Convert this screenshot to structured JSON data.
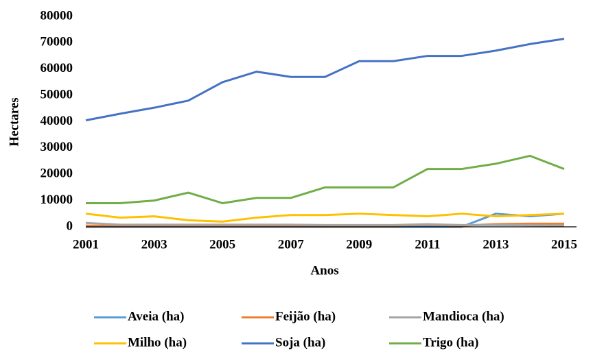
{
  "chart_data": {
    "type": "line",
    "x_label": "Anos",
    "y_label": "Hectares",
    "x": [
      2001,
      2002,
      2003,
      2004,
      2005,
      2006,
      2007,
      2008,
      2009,
      2010,
      2011,
      2012,
      2013,
      2014,
      2015
    ],
    "xlim": [
      2001,
      2015
    ],
    "xticks": [
      2001,
      2003,
      2005,
      2007,
      2009,
      2011,
      2013,
      2015
    ],
    "ylim": [
      0,
      80000
    ],
    "yticks": [
      0,
      10000,
      20000,
      30000,
      40000,
      50000,
      60000,
      70000,
      80000
    ],
    "legend": "bottom",
    "series": [
      {
        "name": "Aveia (ha)",
        "color": "#5b9bd5",
        "values": [
          0,
          0,
          0,
          0,
          0,
          0,
          0,
          0,
          0,
          0,
          0,
          0,
          5000,
          4000,
          5000
        ]
      },
      {
        "name": "Feijão (ha)",
        "color": "#ed7d31",
        "values": [
          500,
          300,
          300,
          300,
          300,
          300,
          300,
          500,
          500,
          500,
          800,
          500,
          1000,
          1200,
          1200
        ]
      },
      {
        "name": "Mandioca (ha)",
        "color": "#a5a5a5",
        "values": [
          1500,
          800,
          800,
          800,
          800,
          800,
          800,
          700,
          700,
          700,
          1000,
          700,
          700,
          600,
          500
        ]
      },
      {
        "name": "Milho (ha)",
        "color": "#ffc000",
        "values": [
          5000,
          3500,
          4000,
          2500,
          2000,
          3500,
          4500,
          4500,
          5000,
          4500,
          4000,
          5000,
          4000,
          4500,
          5000
        ]
      },
      {
        "name": "Soja (ha)",
        "color": "#4472c4",
        "values": [
          40500,
          43000,
          45300,
          48000,
          55000,
          59000,
          57000,
          57000,
          63000,
          63000,
          65000,
          65000,
          67000,
          69500,
          71500
        ]
      },
      {
        "name": "Trigo (ha)",
        "color": "#70ad47",
        "values": [
          9000,
          9000,
          10000,
          13000,
          9000,
          11000,
          11000,
          15000,
          15000,
          15000,
          22000,
          22000,
          24000,
          27000,
          22000
        ]
      }
    ]
  }
}
